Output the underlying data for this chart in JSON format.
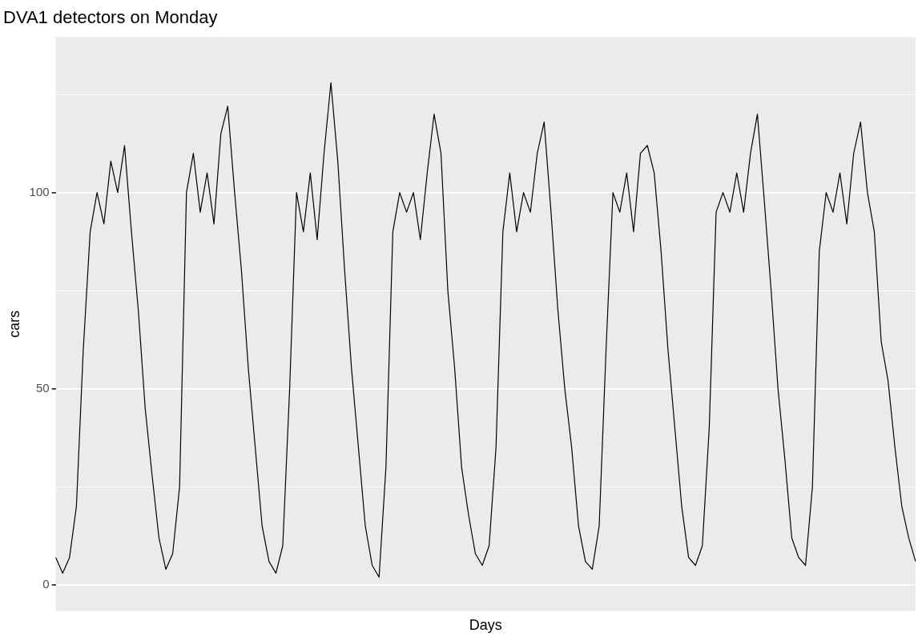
{
  "chart_data": {
    "type": "line",
    "title": "DVA1 detectors on Monday",
    "xlabel": "Days",
    "ylabel": "cars",
    "categories": [
      null,
      null,
      null,
      null,
      null,
      null,
      null,
      null,
      null,
      null,
      null,
      null,
      null,
      null,
      null,
      null,
      null,
      null,
      null,
      null,
      null,
      null,
      null,
      null,
      null,
      null,
      null,
      null,
      null,
      null,
      null,
      null,
      null,
      null,
      null,
      null,
      null,
      null,
      null,
      null,
      null,
      null,
      null,
      null,
      null,
      null,
      null,
      null,
      null,
      null,
      null,
      null,
      null,
      null,
      null,
      null,
      null,
      null,
      null,
      null,
      null,
      null,
      null,
      null,
      null,
      null,
      null,
      null,
      null,
      null,
      null,
      null,
      null,
      null,
      null,
      null,
      null,
      null,
      null,
      null,
      null,
      null,
      null,
      null,
      null,
      null,
      null,
      null,
      null,
      null,
      null,
      null,
      null,
      null,
      null,
      null,
      null,
      null,
      null,
      null,
      null,
      null,
      null,
      null,
      null,
      null,
      null,
      null,
      null,
      null,
      null,
      null,
      null,
      null,
      null,
      null,
      null,
      null,
      null,
      null,
      null,
      null,
      null,
      null,
      null,
      null
    ],
    "series": [
      {
        "color": "#000000",
        "values": [
          7,
          3,
          7,
          20,
          60,
          90,
          100,
          92,
          108,
          100,
          112,
          90,
          70,
          45,
          28,
          12,
          4,
          8,
          25,
          100,
          110,
          95,
          105,
          92,
          115,
          122,
          100,
          80,
          55,
          35,
          15,
          6,
          3,
          10,
          50,
          100,
          90,
          105,
          88,
          110,
          128,
          108,
          80,
          55,
          35,
          15,
          5,
          2,
          30,
          90,
          100,
          95,
          100,
          88,
          105,
          120,
          110,
          75,
          55,
          30,
          18,
          8,
          5,
          10,
          35,
          90,
          105,
          90,
          100,
          95,
          110,
          118,
          95,
          70,
          50,
          35,
          15,
          6,
          4,
          15,
          60,
          100,
          95,
          105,
          90,
          110,
          112,
          105,
          85,
          60,
          40,
          20,
          7,
          5,
          10,
          40,
          95,
          100,
          95,
          105,
          95,
          110,
          120,
          98,
          75,
          50,
          32,
          12,
          7,
          5,
          25,
          85,
          100,
          95,
          105,
          92,
          110,
          118,
          100,
          90,
          62,
          52,
          35,
          20,
          12,
          6
        ]
      }
    ],
    "ylim": [
      -6.6,
      139.6
    ],
    "yticks": [
      0,
      {
        "value": 25,
        "label": null
      },
      50,
      {
        "value": 75,
        "label": null
      },
      100,
      {
        "value": 125,
        "label": null
      }
    ],
    "grid": "y",
    "legend": false,
    "tick_labels": "y",
    "marker": "none",
    "line_style": "solid"
  }
}
